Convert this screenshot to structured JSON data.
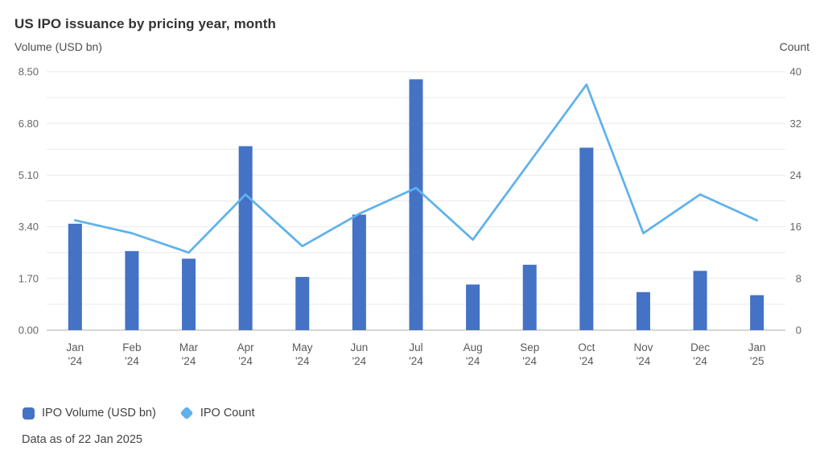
{
  "chart_data": {
    "type": "combo",
    "title": "US IPO issuance by pricing year, month",
    "footnote": "Data as of 22 Jan 2025",
    "categories": [
      [
        "Jan",
        "'24"
      ],
      [
        "Feb",
        "'24"
      ],
      [
        "Mar",
        "'24"
      ],
      [
        "Apr",
        "'24"
      ],
      [
        "May",
        "'24"
      ],
      [
        "Jun",
        "'24"
      ],
      [
        "Jul",
        "'24"
      ],
      [
        "Aug",
        "'24"
      ],
      [
        "Sep",
        "'24"
      ],
      [
        "Oct",
        "'24"
      ],
      [
        "Nov",
        "'24"
      ],
      [
        "Dec",
        "'24"
      ],
      [
        "Jan",
        "'25"
      ]
    ],
    "series": [
      {
        "name": "IPO Volume (USD bn)",
        "type": "bar",
        "axis": "left",
        "color": "#4472C4",
        "values": [
          3.5,
          2.6,
          2.35,
          6.05,
          1.75,
          3.8,
          8.25,
          1.5,
          2.15,
          6.0,
          1.25,
          1.95,
          1.15
        ]
      },
      {
        "name": "IPO Count",
        "type": "line",
        "axis": "right",
        "color": "#5FB2EC",
        "values": [
          17,
          15,
          12,
          21,
          13,
          18,
          22,
          14,
          26,
          38,
          15,
          21,
          17
        ]
      }
    ],
    "axes": {
      "left": {
        "label": "Volume (USD bn)",
        "min": 0,
        "max": 8.5,
        "tick_labels": [
          "0.00",
          "1.70",
          "3.40",
          "5.10",
          "6.80",
          "8.50"
        ],
        "minor_divisions": 10
      },
      "right": {
        "label": "Count",
        "min": 0,
        "max": 40,
        "tick_labels": [
          "0",
          "8",
          "16",
          "24",
          "32",
          "40"
        ],
        "minor_divisions": 10
      }
    },
    "grid": {
      "color": "#e9e9e9",
      "baseline_color": "#c9c9c9"
    },
    "legend_position": "bottom-left"
  }
}
